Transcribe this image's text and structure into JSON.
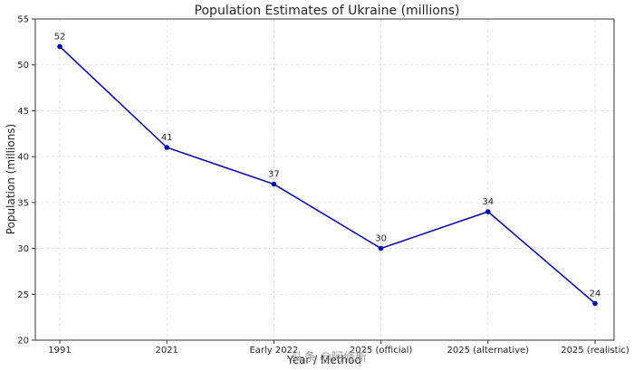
{
  "chart_data": {
    "type": "line",
    "title": "Population Estimates of Ukraine (millions)",
    "xlabel": "Year / Method",
    "ylabel": "Population (millions)",
    "categories": [
      "1991",
      "2021",
      "Early 2022",
      "2025 (official)",
      "2025 (alternative)",
      "2025 (realistic)"
    ],
    "series": [
      {
        "name": "Population",
        "values": [
          52,
          41,
          37,
          30,
          34,
          24
        ]
      }
    ],
    "ylim": [
      20,
      55
    ],
    "yticks": [
      20,
      25,
      30,
      35,
      40,
      45,
      50,
      55
    ],
    "ytick_labels": [
      "20",
      "25",
      "30",
      "35",
      "40",
      "45",
      "50",
      "55"
    ],
    "grid": true,
    "markers": true,
    "line_color": "#0000bb",
    "marker_color": "#0000bb",
    "grid_color": "#d9d9d9",
    "data_labels": [
      "52",
      "41",
      "37",
      "30",
      "34",
      "24"
    ]
  },
  "watermark": {
    "text": "头条 @阿修斯"
  }
}
